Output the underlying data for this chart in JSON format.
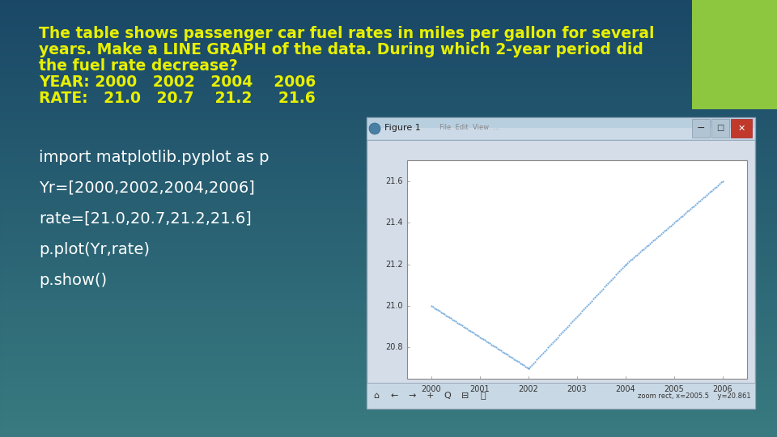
{
  "bg_color": "#1e5f7a",
  "green_rect_color": "#8dc63f",
  "text_color": "#e8f000",
  "code_color": "#ffffff",
  "line_color": "#5b9bd5",
  "years": [
    2000,
    2002,
    2004,
    2006
  ],
  "rates": [
    21.0,
    20.7,
    21.2,
    21.6
  ],
  "text_lines": [
    "The table shows passenger car fuel rates in miles per gallon for several",
    "years. Make a LINE GRAPH of the data. During which 2-year period did",
    "the fuel rate decrease?",
    "YEAR: 2000   2002   2004    2006",
    "RATE:   21.0   20.7    21.2     21.6"
  ],
  "code_lines": [
    "import matplotlib.pyplot as p",
    "Yr=[2000,2002,2004,2006]",
    "rate=[21.0,20.7,21.2,21.6]",
    "p.plot(Yr,rate)",
    "p.show()"
  ]
}
